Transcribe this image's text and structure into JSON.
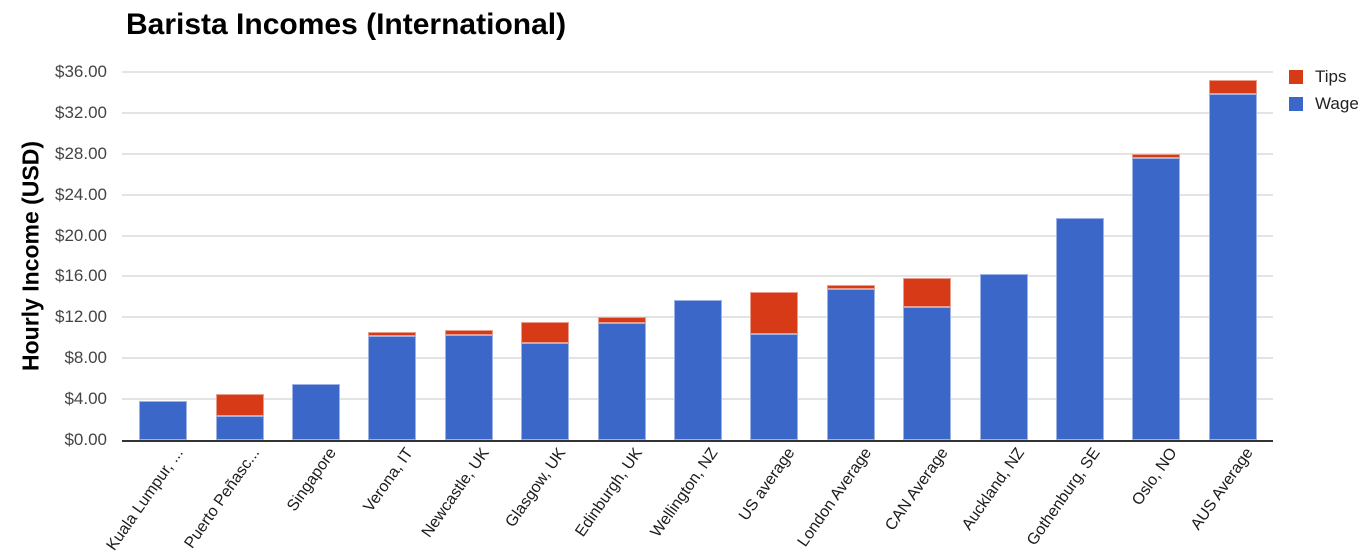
{
  "chart_data": {
    "type": "bar",
    "stacked": true,
    "title": "Barista Incomes (International)",
    "ylabel": "Hourly Income (USD)",
    "xlabel": "",
    "ylim": [
      0,
      36
    ],
    "ytick_step": 4,
    "ytick_labels": [
      "$0.00",
      "$4.00",
      "$8.00",
      "$12.00",
      "$16.00",
      "$20.00",
      "$24.00",
      "$28.00",
      "$32.00",
      "$36.00"
    ],
    "grid": true,
    "legend_position": "top-right",
    "categories": [
      "Kuala Lumpur, ...",
      "Puerto Peñasc...",
      "Singapore",
      "Verona, IT",
      "Newcastle, UK",
      "Glasgow, UK",
      "Edinburgh, UK",
      "Wellington, NZ",
      "US average",
      "London Average",
      "CAN Average",
      "Auckland, NZ",
      "Gothenburg, SE",
      "Oslo, NO",
      "AUS Average"
    ],
    "series": [
      {
        "name": "Wage",
        "color": "#3A67C8",
        "values": [
          3.8,
          2.3,
          5.5,
          10.2,
          10.3,
          9.5,
          11.4,
          13.7,
          10.4,
          14.8,
          13.0,
          16.2,
          21.7,
          27.6,
          33.8
        ]
      },
      {
        "name": "Tips",
        "color": "#D63A17",
        "values": [
          0,
          2.2,
          0,
          0.4,
          0.5,
          2.0,
          0.6,
          0,
          4.1,
          0.4,
          2.8,
          0,
          0,
          0.4,
          1.4
        ]
      }
    ],
    "legend": [
      {
        "label": "Tips",
        "color": "#D63A17"
      },
      {
        "label": "Wage",
        "color": "#3A67C8"
      }
    ]
  },
  "style": {
    "title_color": "#000000",
    "axis_title_color": "#000000",
    "ytick_color": "#444444",
    "xlabel_color": "#1c1c1c",
    "legend_text_color": "#222222",
    "grid_color": "#e4e4e4",
    "axis_color": "#333333",
    "background": "#ffffff"
  }
}
